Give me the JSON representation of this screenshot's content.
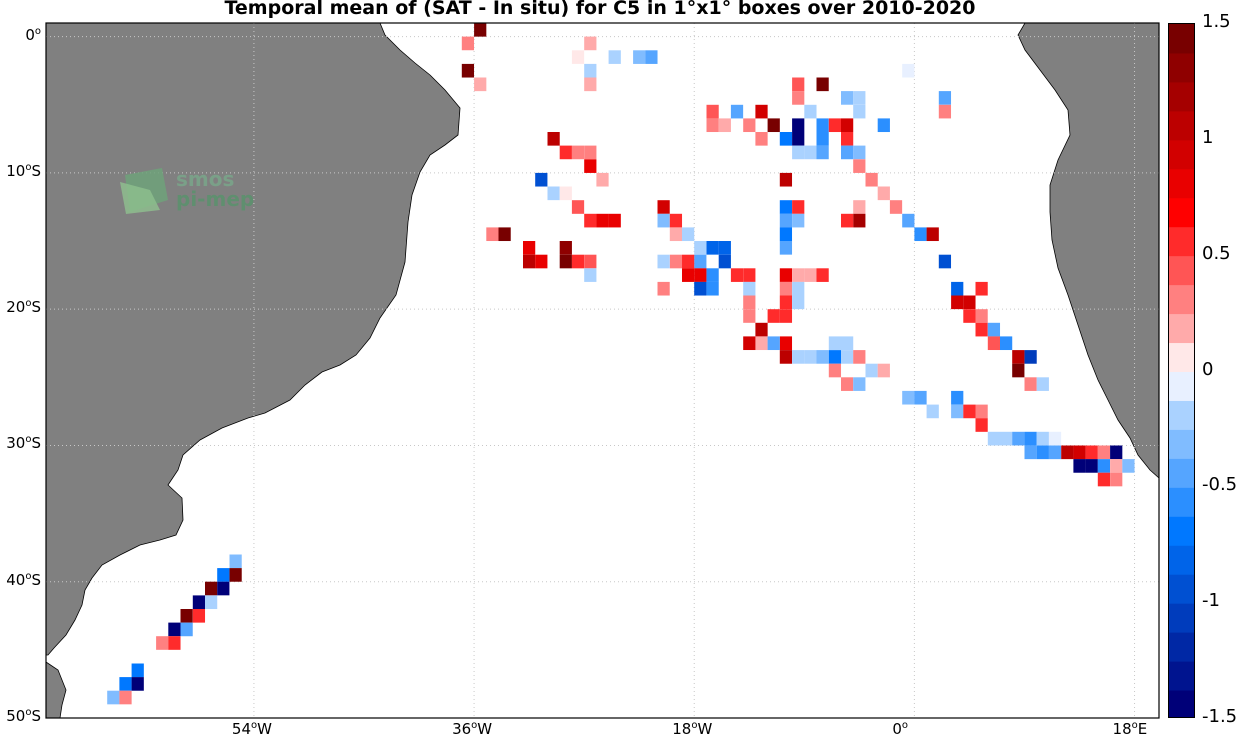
{
  "title": "Temporal mean of (SAT - In situ) for C5 in 1°x1° boxes over 2010-2020",
  "logo": {
    "line1": "smos",
    "line2": "pi-mep"
  },
  "lat_ticks": [
    {
      "value": 0,
      "text": "0"
    },
    {
      "value": -10,
      "text": "10",
      "suffix": "S"
    },
    {
      "value": -20,
      "text": "20",
      "suffix": "S"
    },
    {
      "value": -30,
      "text": "30",
      "suffix": "S"
    },
    {
      "value": -40,
      "text": "40",
      "suffix": "S"
    },
    {
      "value": -50,
      "text": "50",
      "suffix": "S"
    }
  ],
  "lon_ticks": [
    {
      "value": -54,
      "text": "54",
      "suffix": "W"
    },
    {
      "value": -36,
      "text": "36",
      "suffix": "W"
    },
    {
      "value": -18,
      "text": "18",
      "suffix": "W"
    },
    {
      "value": 0,
      "text": "0",
      "suffix": ""
    },
    {
      "value": 18,
      "text": "18",
      "suffix": "E"
    }
  ],
  "colorbar": {
    "min": -1.5,
    "max": 1.5,
    "levels": 24,
    "ticks": [
      "1.5",
      "1",
      "0.5",
      "0",
      "-0.5",
      "-1",
      "-1.5"
    ],
    "tick_values": [
      1.5,
      1,
      0.5,
      0,
      -0.5,
      -1,
      -1.5
    ]
  },
  "colors": {
    "land": "#808080",
    "ocean": "#ffffff",
    "grid": "#c8c8c8"
  },
  "map_data": {
    "extent_lon": [
      -71,
      20
    ],
    "extent_lat": [
      -50,
      1
    ],
    "cells": [
      [
        -37,
        0,
        0.25
      ],
      [
        -36,
        1,
        1.6
      ],
      [
        -37,
        -2,
        1.5
      ],
      [
        -36,
        -3,
        0.15
      ],
      [
        -28,
        -1,
        0.1
      ],
      [
        -27,
        0,
        0.15
      ],
      [
        -27,
        -2,
        -0.25
      ],
      [
        -27,
        -3,
        0.2
      ],
      [
        -25,
        -1,
        -0.25
      ],
      [
        -23,
        -1,
        -0.35
      ],
      [
        -22,
        -1,
        -0.4
      ],
      [
        -10,
        -3,
        0.4
      ],
      [
        -8,
        -3,
        1.6
      ],
      [
        -10,
        -4,
        0.35
      ],
      [
        -9,
        -5,
        -0.15
      ],
      [
        -6,
        -4,
        -0.35
      ],
      [
        -5,
        -4,
        -0.15
      ],
      [
        -5,
        -5,
        -0.15
      ],
      [
        -1,
        -2,
        -0.1
      ],
      [
        2,
        -4,
        -0.4
      ],
      [
        2,
        -5,
        0.3
      ],
      [
        -17,
        -5,
        0.4
      ],
      [
        -15,
        -5,
        -0.5
      ],
      [
        -13,
        -5,
        0.9
      ],
      [
        -17,
        -6,
        0.35
      ],
      [
        -16,
        -6,
        0.15
      ],
      [
        -14,
        -6,
        0.25
      ],
      [
        -12,
        -6,
        1.6
      ],
      [
        -10,
        -6,
        -1.6
      ],
      [
        -8,
        -6,
        -0.6
      ],
      [
        -7,
        -6,
        0.6
      ],
      [
        -6,
        -6,
        0.9
      ],
      [
        -3,
        -6,
        -0.55
      ],
      [
        -13,
        -7,
        0.25
      ],
      [
        -11,
        -7,
        -0.7
      ],
      [
        -10,
        -7,
        -1.4
      ],
      [
        -8,
        -7,
        -0.55
      ],
      [
        -6,
        -7,
        0.5
      ],
      [
        -10,
        -8,
        -0.25
      ],
      [
        -9,
        -8,
        -0.25
      ],
      [
        -8,
        -8,
        -0.4
      ],
      [
        -6,
        -8,
        -0.45
      ],
      [
        -5,
        -8,
        -0.3
      ],
      [
        -30,
        -7,
        1.0
      ],
      [
        -29,
        -8,
        0.6
      ],
      [
        -28,
        -8,
        0.25
      ],
      [
        -27,
        -8,
        0.3
      ],
      [
        -27,
        -9,
        0.8
      ],
      [
        -26,
        -10,
        0.2
      ],
      [
        -31,
        -10,
        -0.9
      ],
      [
        -30,
        -11,
        -0.15
      ],
      [
        -29,
        -11,
        0.1
      ],
      [
        -28,
        -12,
        0.4
      ],
      [
        -27,
        -13,
        0.5
      ],
      [
        -26,
        -13,
        0.8
      ],
      [
        -25,
        -13,
        0.8
      ],
      [
        -11,
        -10,
        1.0
      ],
      [
        -5,
        -9,
        0.35
      ],
      [
        -4,
        -10,
        0.3
      ],
      [
        -3,
        -11,
        0.15
      ],
      [
        -2,
        -12,
        0.3
      ],
      [
        -1,
        -13,
        -0.4
      ],
      [
        -5,
        -12,
        0.2
      ],
      [
        -5,
        -13,
        1.2
      ],
      [
        -6,
        -13,
        0.5
      ],
      [
        0,
        -14,
        -0.6
      ],
      [
        1,
        -14,
        1.1
      ],
      [
        2,
        -16,
        -0.9
      ],
      [
        -11,
        -12,
        -0.7
      ],
      [
        -10,
        -12,
        0.6
      ],
      [
        -11,
        -13,
        -0.5
      ],
      [
        -10,
        -13,
        -0.3
      ],
      [
        -11,
        -14,
        -0.7
      ],
      [
        -11,
        -15,
        -0.5
      ],
      [
        -21,
        -12,
        0.9
      ],
      [
        -21,
        -13,
        -0.3
      ],
      [
        -20,
        -13,
        0.5
      ],
      [
        -20,
        -14,
        0.15
      ],
      [
        -19,
        -14,
        -0.15
      ],
      [
        -18,
        -15,
        -0.2
      ],
      [
        -17,
        -15,
        -0.8
      ],
      [
        -16,
        -15,
        -0.8
      ],
      [
        -16,
        -16,
        -1.0
      ],
      [
        -18,
        -16,
        -0.4
      ],
      [
        -19,
        -16,
        0.5
      ],
      [
        -20,
        -16,
        0.25
      ],
      [
        -21,
        -16,
        -0.15
      ],
      [
        -19,
        -17,
        0.8
      ],
      [
        -18,
        -17,
        0.85
      ],
      [
        -17,
        -17,
        -0.6
      ],
      [
        -18,
        -18,
        -1.0
      ],
      [
        -17,
        -18,
        -0.6
      ],
      [
        -21,
        -18,
        0.35
      ],
      [
        -35,
        -14,
        0.3
      ],
      [
        -34,
        -14,
        1.5
      ],
      [
        -32,
        -15,
        0.8
      ],
      [
        -32,
        -16,
        1.0
      ],
      [
        -31,
        -16,
        0.8
      ],
      [
        -29,
        -15,
        1.3
      ],
      [
        -29,
        -16,
        1.6
      ],
      [
        -28,
        -16,
        0.6
      ],
      [
        -27,
        -16,
        0.45
      ],
      [
        -27,
        -17,
        -0.15
      ],
      [
        -15,
        -17,
        0.5
      ],
      [
        -14,
        -17,
        0.5
      ],
      [
        -14,
        -18,
        -0.2
      ],
      [
        -11,
        -17,
        0.8
      ],
      [
        -10,
        -17,
        0.15
      ],
      [
        -9,
        -17,
        0.2
      ],
      [
        -8,
        -17,
        0.5
      ],
      [
        -11,
        -18,
        0.35
      ],
      [
        -10,
        -18,
        -0.25
      ],
      [
        -11,
        -19,
        0.6
      ],
      [
        -10,
        -19,
        -0.15
      ],
      [
        -14,
        -19,
        0.35
      ],
      [
        -14,
        -20,
        0.35
      ],
      [
        -12,
        -20,
        0.6
      ],
      [
        -11,
        -20,
        0.5
      ],
      [
        -13,
        -21,
        1.0
      ],
      [
        -11,
        -22,
        0.8
      ],
      [
        -13,
        -22,
        0.15
      ],
      [
        -14,
        -22,
        0.9
      ],
      [
        -12,
        -22,
        -0.4
      ],
      [
        -11,
        -23,
        1.0
      ],
      [
        -10,
        -23,
        -0.2
      ],
      [
        -9,
        -23,
        -0.15
      ],
      [
        -8,
        -23,
        -0.3
      ],
      [
        -7,
        -23,
        -0.7
      ],
      [
        -6,
        -23,
        -0.15
      ],
      [
        -5,
        -23,
        0.3
      ],
      [
        -7,
        -22,
        -0.2
      ],
      [
        -6,
        -22,
        -0.15
      ],
      [
        -7,
        -24,
        0.25
      ],
      [
        -4,
        -24,
        -0.2
      ],
      [
        -3,
        -24,
        0.15
      ],
      [
        -6,
        -25,
        0.25
      ],
      [
        -5,
        -25,
        -0.3
      ],
      [
        3,
        -18,
        -0.85
      ],
      [
        3,
        -19,
        0.9
      ],
      [
        4,
        -19,
        0.9
      ],
      [
        5,
        -18,
        0.5
      ],
      [
        4,
        -20,
        0.5
      ],
      [
        5,
        -20,
        0.25
      ],
      [
        5,
        -21,
        0.6
      ],
      [
        6,
        -21,
        -0.4
      ],
      [
        6,
        -22,
        0.4
      ],
      [
        7,
        -22,
        -0.6
      ],
      [
        8,
        -23,
        1.0
      ],
      [
        9,
        -23,
        -1.1
      ],
      [
        8,
        -24,
        1.6
      ],
      [
        9,
        -25,
        0.3
      ],
      [
        10,
        -25,
        -0.25
      ],
      [
        -1,
        -26,
        -0.35
      ],
      [
        0,
        -26,
        -0.5
      ],
      [
        1,
        -27,
        -0.2
      ],
      [
        3,
        -26,
        -0.6
      ],
      [
        3,
        -27,
        -0.3
      ],
      [
        4,
        -27,
        0.5
      ],
      [
        5,
        -27,
        0.35
      ],
      [
        5,
        -28,
        0.5
      ],
      [
        6,
        -29,
        -0.2
      ],
      [
        7,
        -29,
        -0.15
      ],
      [
        8,
        -29,
        -0.5
      ],
      [
        9,
        -29,
        -0.6
      ],
      [
        10,
        -29,
        -0.2
      ],
      [
        11,
        -29,
        -0.1
      ],
      [
        9,
        -30,
        -0.4
      ],
      [
        10,
        -30,
        -0.6
      ],
      [
        11,
        -30,
        -0.4
      ],
      [
        12,
        -30,
        1.0
      ],
      [
        13,
        -30,
        0.9
      ],
      [
        14,
        -30,
        0.6
      ],
      [
        15,
        -30,
        0.3
      ],
      [
        16,
        -30,
        -1.6
      ],
      [
        13,
        -31,
        -1.6
      ],
      [
        14,
        -31,
        -1.6
      ],
      [
        15,
        -31,
        -0.6
      ],
      [
        16,
        -31,
        0.15
      ],
      [
        17,
        -31,
        -0.3
      ],
      [
        15,
        -32,
        0.6
      ],
      [
        16,
        -32,
        0.3
      ],
      [
        -56,
        -38,
        -0.3
      ],
      [
        -57,
        -39,
        -0.7
      ],
      [
        -56,
        -39,
        1.6
      ],
      [
        -58,
        -40,
        1.5
      ],
      [
        -57,
        -40,
        -1.5
      ],
      [
        -59,
        -41,
        -1.5
      ],
      [
        -58,
        -41,
        -0.15
      ],
      [
        -60,
        -42,
        1.5
      ],
      [
        -59,
        -42,
        0.5
      ],
      [
        -61,
        -43,
        -1.6
      ],
      [
        -60,
        -43,
        -0.5
      ],
      [
        -62,
        -44,
        0.35
      ],
      [
        -61,
        -44,
        0.5
      ],
      [
        -64,
        -46,
        -0.7
      ],
      [
        -65,
        -47,
        -0.7
      ],
      [
        -64,
        -47,
        -1.6
      ],
      [
        -66,
        -48,
        -0.3
      ],
      [
        -65,
        -48,
        0.25
      ]
    ]
  }
}
